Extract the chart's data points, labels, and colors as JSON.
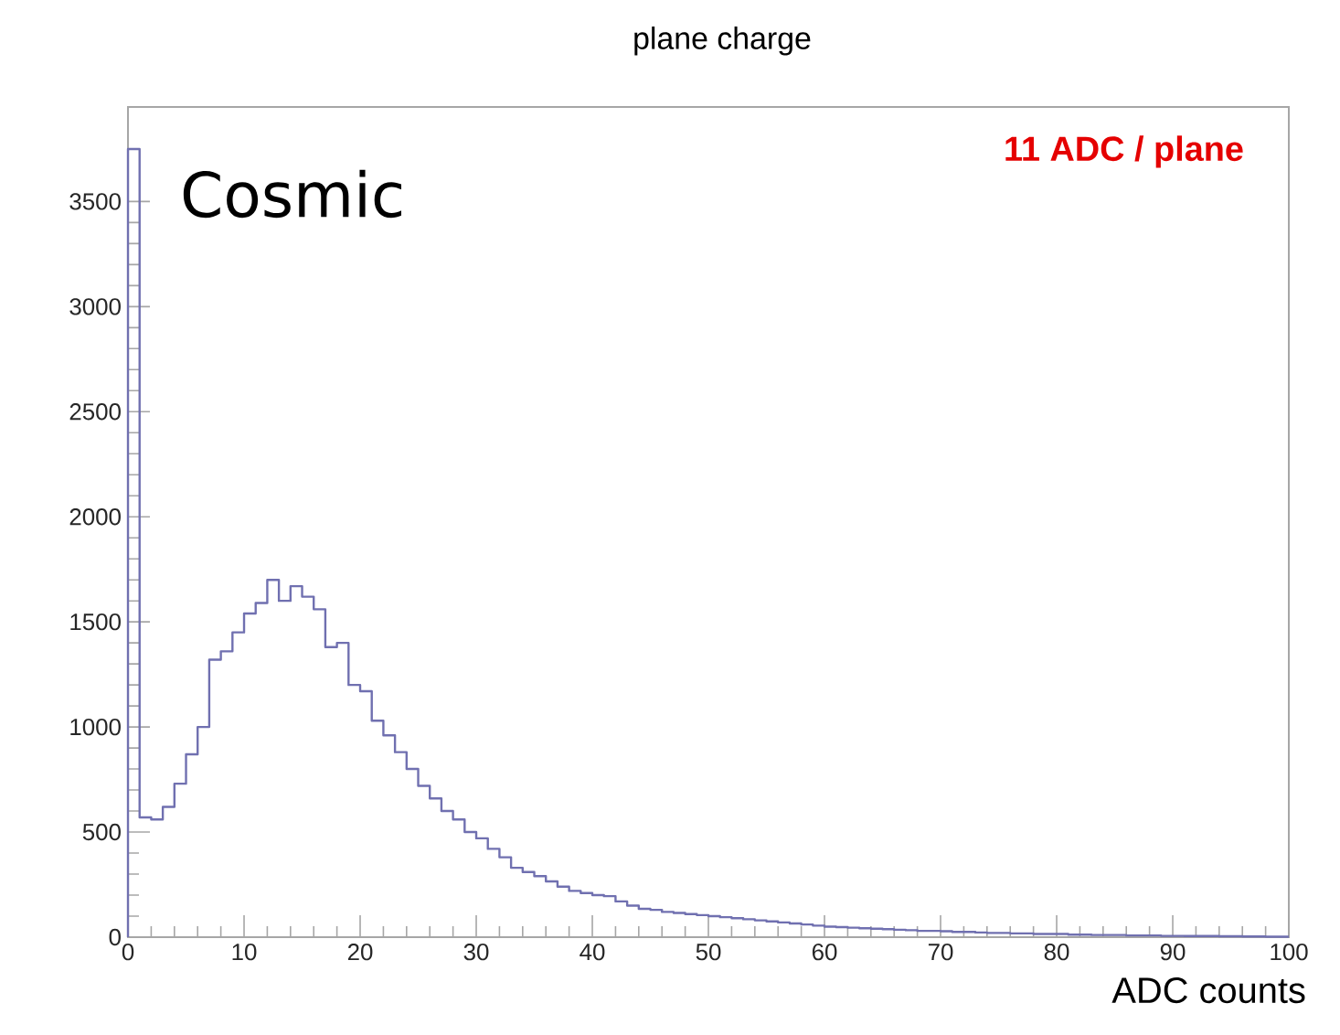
{
  "chart_data": {
    "type": "histogram",
    "title": "plane charge",
    "xlabel": "ADC counts",
    "annotations": [
      "Cosmic",
      "11 ADC / plane"
    ],
    "bins": [
      0,
      1,
      2,
      3,
      4,
      5,
      6,
      7,
      8,
      9,
      10,
      11,
      12,
      13,
      14,
      15,
      16,
      17,
      18,
      19,
      20,
      21,
      22,
      23,
      24,
      25,
      26,
      27,
      28,
      29,
      30,
      31,
      32,
      33,
      34,
      35,
      36,
      37,
      38,
      39,
      40,
      41,
      42,
      43,
      44,
      45,
      46,
      47,
      48,
      49,
      50,
      51,
      52,
      53,
      54,
      55,
      56,
      57,
      58,
      59,
      60,
      61,
      62,
      63,
      64,
      65,
      66,
      67,
      68,
      69,
      70,
      71,
      72,
      73,
      74,
      75,
      76,
      77,
      78,
      79,
      80,
      81,
      82,
      83,
      84,
      85,
      86,
      87,
      88,
      89,
      90,
      91,
      92,
      93,
      94,
      95,
      96,
      97,
      98,
      99,
      100
    ],
    "values": [
      3750,
      570,
      560,
      620,
      730,
      870,
      1000,
      1320,
      1360,
      1450,
      1540,
      1590,
      1700,
      1600,
      1670,
      1620,
      1560,
      1380,
      1400,
      1200,
      1170,
      1030,
      960,
      880,
      800,
      720,
      660,
      600,
      560,
      500,
      470,
      420,
      380,
      330,
      310,
      290,
      265,
      240,
      220,
      210,
      200,
      195,
      170,
      150,
      135,
      130,
      120,
      115,
      110,
      105,
      100,
      95,
      90,
      85,
      80,
      75,
      70,
      65,
      60,
      55,
      50,
      48,
      45,
      42,
      40,
      38,
      35,
      33,
      30,
      30,
      28,
      25,
      25,
      22,
      20,
      20,
      18,
      18,
      15,
      15,
      15,
      12,
      12,
      10,
      10,
      10,
      8,
      8,
      8,
      6,
      6,
      5,
      5,
      5,
      4,
      4,
      3,
      3,
      2,
      2
    ],
    "color": "#7070b0",
    "xlim": [
      0,
      100
    ],
    "ylim": [
      0,
      3950
    ],
    "xticks": [
      0,
      10,
      20,
      30,
      40,
      50,
      60,
      70,
      80,
      90,
      100
    ],
    "yticks": [
      0,
      500,
      1000,
      1500,
      2000,
      2500,
      3000,
      3500
    ]
  }
}
